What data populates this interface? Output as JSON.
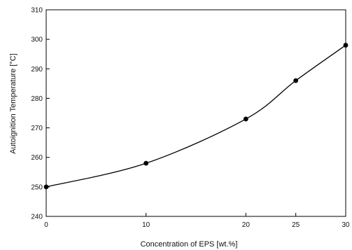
{
  "chart_data": {
    "type": "line",
    "title": "",
    "xlabel": "Concentration of EPS [wt.%]",
    "ylabel": "Autoignition Temperature [°C]",
    "xlim": [
      0,
      30
    ],
    "ylim": [
      240,
      310
    ],
    "xticks": [
      0,
      10,
      20,
      25,
      30
    ],
    "yticks": [
      240,
      250,
      260,
      270,
      280,
      290,
      300,
      310
    ],
    "x": [
      0,
      10,
      20,
      25,
      30
    ],
    "series": [
      {
        "values": [
          250,
          258,
          273,
          286,
          298
        ]
      }
    ],
    "grid": false,
    "legend": "none",
    "line_color": "#000000",
    "marker": "filled-circle"
  }
}
